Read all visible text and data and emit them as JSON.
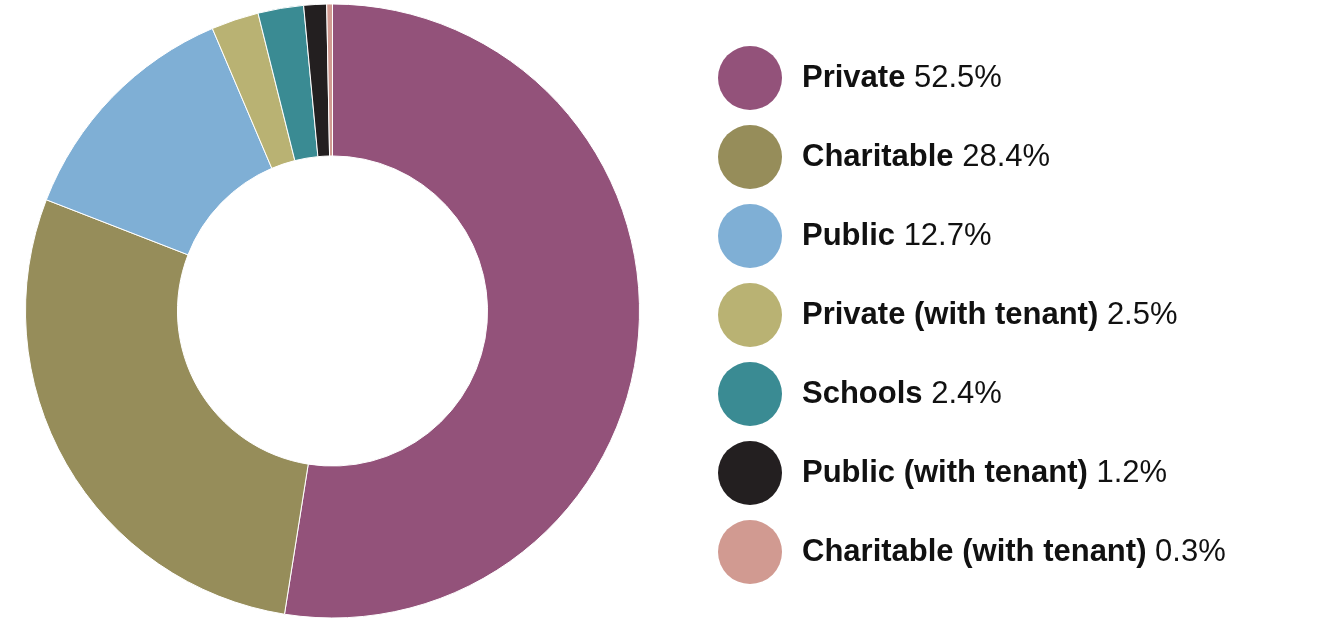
{
  "chart_data": {
    "type": "donut",
    "categories": [
      "Private",
      "Charitable",
      "Public",
      "Private (with tenant)",
      "Schools",
      "Public (with tenant)",
      "Charitable (with tenant)"
    ],
    "values": [
      52.5,
      28.4,
      12.7,
      2.5,
      2.4,
      1.2,
      0.3
    ],
    "colors": [
      "#93527a",
      "#968d5a",
      "#7fafd5",
      "#b9b273",
      "#3a8b93",
      "#231f20",
      "#d19a91"
    ],
    "value_labels": [
      "52.5%",
      "28.4%",
      "12.7%",
      "2.5%",
      "2.4%",
      "1.2%",
      "0.3%"
    ],
    "legend": "right"
  }
}
